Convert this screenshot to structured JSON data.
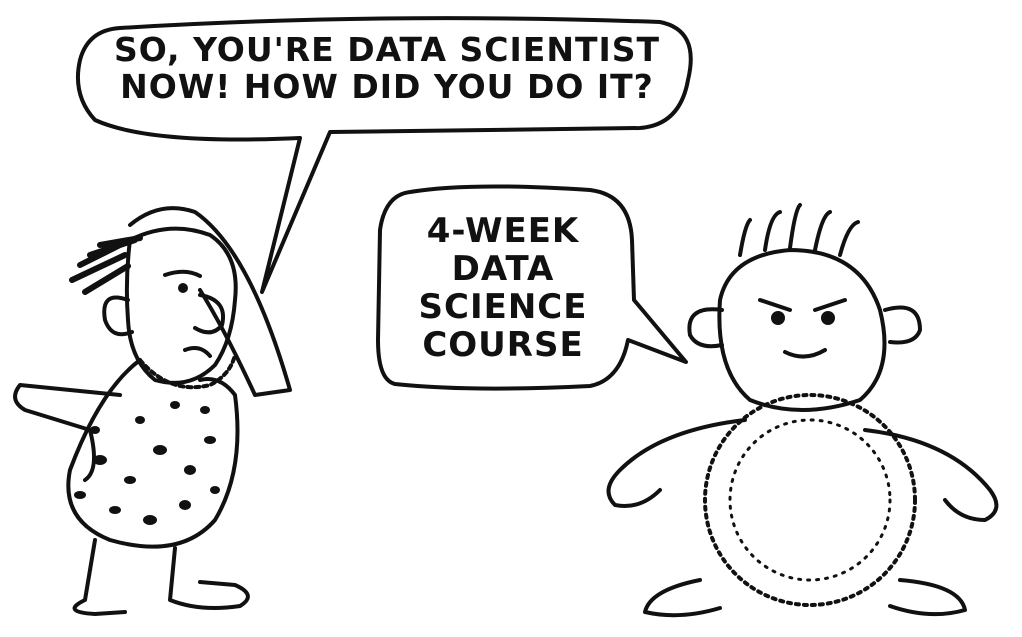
{
  "speech_bubbles": {
    "left": {
      "text": "SO, YOU'RE DATA SCIENTIST\nNOW! HOW DID YOU DO IT?"
    },
    "right": {
      "text": "4-WEEK\nDATA\nSCIENCE\nCOURSE"
    }
  },
  "colors": {
    "ink": "#111111",
    "paper": "#ffffff"
  }
}
